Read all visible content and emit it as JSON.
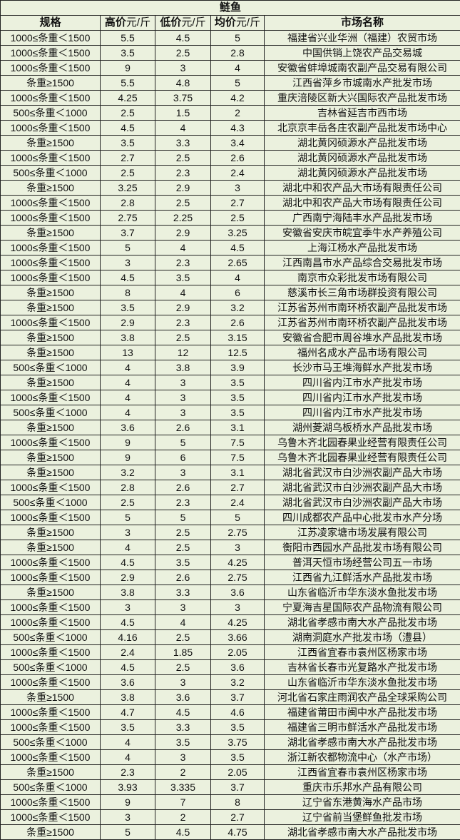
{
  "title": "鲢鱼",
  "headers": {
    "spec": "规格",
    "high": "高价",
    "high_unit": "元/斤",
    "low": "低价",
    "low_unit": "元/斤",
    "avg": "均价",
    "avg_unit": "元/斤",
    "market": "市场名称"
  },
  "rows": [
    [
      "1000≤条重＜1500",
      "5.5",
      "4.5",
      "5",
      "福建省兴业华洲（福建）农贸市场"
    ],
    [
      "1000≤条重＜1500",
      "3.5",
      "2.5",
      "2.8",
      "中国供销上饶农产品交易城"
    ],
    [
      "1000≤条重＜1500",
      "9",
      "3",
      "4",
      "安徽省蚌埠城南农副产品交易有限公司"
    ],
    [
      "条重≥1500",
      "5.5",
      "4.8",
      "5",
      "江西省萍乡市城南水产批发市场"
    ],
    [
      "1000≤条重＜1500",
      "4.25",
      "3.75",
      "4.2",
      "重庆涪陵区新大兴国际农产品批发市场"
    ],
    [
      "500≤条重＜1000",
      "2.5",
      "1.5",
      "2",
      "吉林省延吉市西市场"
    ],
    [
      "1000≤条重＜1500",
      "4.5",
      "4",
      "4.3",
      "北京京丰岳各庄农副产品批发市场中心"
    ],
    [
      "条重≥1500",
      "3.5",
      "3.3",
      "3.4",
      "湖北黄冈硕源水产品批发市场"
    ],
    [
      "1000≤条重＜1500",
      "2.7",
      "2.5",
      "2.6",
      "湖北黄冈硕源水产品批发市场"
    ],
    [
      "500≤条重＜1000",
      "2.5",
      "2.3",
      "2.4",
      "湖北黄冈硕源水产品批发市场"
    ],
    [
      "条重≥1500",
      "3.25",
      "2.9",
      "3",
      "湖北中和农产品大市场有限责任公司"
    ],
    [
      "1000≤条重＜1500",
      "2.8",
      "2.5",
      "2.7",
      "湖北中和农产品大市场有限责任公司"
    ],
    [
      "1000≤条重＜1500",
      "2.75",
      "2.25",
      "2.5",
      "广西南宁海陆丰水产品批发市场"
    ],
    [
      "条重≥1500",
      "3.7",
      "2.9",
      "3.25",
      "安徽省安庆市皖宜季牛水产养殖公司"
    ],
    [
      "1000≤条重＜1500",
      "5",
      "4",
      "4.5",
      "上海江杨水产品批发市场"
    ],
    [
      "1000≤条重＜1500",
      "3",
      "2.3",
      "2.65",
      "江西南昌市水产品综合交易批发市场"
    ],
    [
      "1000≤条重＜1500",
      "4.5",
      "3.5",
      "4",
      "南京市众彩批发市场有限公司"
    ],
    [
      "条重≥1500",
      "8",
      "4",
      "6",
      "慈溪市长三角市场群投资有限公司"
    ],
    [
      "条重≥1500",
      "3.5",
      "2.9",
      "3.2",
      "江苏省苏州市南环桥农副产品批发市场"
    ],
    [
      "1000≤条重＜1500",
      "2.9",
      "2.3",
      "2.6",
      "江苏省苏州市南环桥农副产品批发市场"
    ],
    [
      "条重≥1500",
      "3.8",
      "2.5",
      "3.15",
      "安徽省合肥市周谷堆水产品批发市场"
    ],
    [
      "条重≥1500",
      "13",
      "12",
      "12.5",
      "福州名成水产品市场有限公司"
    ],
    [
      "500≤条重＜1000",
      "4",
      "3.8",
      "3.9",
      "长沙市马王堆海鲜水产批发市场"
    ],
    [
      "条重≥1500",
      "4",
      "3",
      "3.5",
      "四川省内江市水产批发市场"
    ],
    [
      "1000≤条重＜1500",
      "4",
      "3",
      "3.5",
      "四川省内江市水产批发市场"
    ],
    [
      "500≤条重＜1000",
      "4",
      "3",
      "3.5",
      "四川省内江市水产批发市场"
    ],
    [
      "条重≥1500",
      "3.6",
      "2.6",
      "3.1",
      "湖州菱湖乌板桥水产品批发市场"
    ],
    [
      "1000≤条重＜1500",
      "9",
      "5",
      "7.5",
      "乌鲁木齐北园春果业经营有限责任公司"
    ],
    [
      "条重≥1500",
      "9",
      "6",
      "7.5",
      "乌鲁木齐北园春果业经营有限责任公司"
    ],
    [
      "条重≥1500",
      "3.2",
      "3",
      "3.1",
      "湖北省武汉市白沙洲农副产品大市场"
    ],
    [
      "1000≤条重＜1500",
      "2.8",
      "2.6",
      "2.7",
      "湖北省武汉市白沙洲农副产品大市场"
    ],
    [
      "500≤条重＜1000",
      "2.5",
      "2.3",
      "2.4",
      "湖北省武汉市白沙洲农副产品大市场"
    ],
    [
      "1000≤条重＜1500",
      "5",
      "5",
      "5",
      "四川成都农产品中心批发市水产分场"
    ],
    [
      "条重≥1500",
      "3",
      "2.5",
      "2.75",
      "江苏凌家塘市场发展有限公司"
    ],
    [
      "条重≥1500",
      "4",
      "2.5",
      "3",
      "衡阳市西园水产品批发市场有限公司"
    ],
    [
      "1000≤条重＜1500",
      "4.5",
      "3.5",
      "4.25",
      "普洱天恒市场经营公司五一市场"
    ],
    [
      "1000≤条重＜1500",
      "2.9",
      "2.6",
      "2.75",
      "江西省九江鲜活水产品批发市场"
    ],
    [
      "条重≥1500",
      "3.8",
      "3.3",
      "3.6",
      "山东省临沂市华东淡水鱼批发市场"
    ],
    [
      "1000≤条重＜1500",
      "3",
      "3",
      "3",
      "宁夏海吉星国际农产品物流有限公司"
    ],
    [
      "1000≤条重＜1500",
      "4.5",
      "4",
      "4.25",
      "湖北省孝感市南大水产品批发市场"
    ],
    [
      "500≤条重＜1000",
      "4.16",
      "2.5",
      "3.66",
      "湖南洞庭水产批发市场（澧县）"
    ],
    [
      "1000≤条重＜1500",
      "2.4",
      "1.85",
      "2.05",
      "江西省宜春市袁州区杨家市场"
    ],
    [
      "500≤条重＜1000",
      "4.5",
      "2.5",
      "3.6",
      "吉林省长春市光复路水产批发市场"
    ],
    [
      "1000≤条重＜1500",
      "3.6",
      "3",
      "3.2",
      "山东省临沂市华东淡水鱼批发市场"
    ],
    [
      "条重≥1500",
      "3.8",
      "3.6",
      "3.7",
      "河北省石家庄雨润农产品全球采购公司"
    ],
    [
      "1000≤条重＜1500",
      "4.7",
      "4.5",
      "4.6",
      "福建省莆田市闽中水产品批发市场"
    ],
    [
      "1000≤条重＜1500",
      "3.5",
      "3.3",
      "3.5",
      "福建省三明市鲜活水产品批发市场"
    ],
    [
      "500≤条重＜1000",
      "4",
      "3.5",
      "3.75",
      "湖北省孝感市南大水产品批发市场"
    ],
    [
      "1000≤条重＜1500",
      "4",
      "3",
      "3.5",
      "浙江新农都物流中心（水产市场）"
    ],
    [
      "条重≥1500",
      "2.3",
      "2",
      "2.05",
      "江西省宜春市袁州区杨家市场"
    ],
    [
      "500≤条重＜1000",
      "3.93",
      "3.335",
      "3.7",
      "重庆市乐邦水产品有限公司"
    ],
    [
      "1000≤条重＜1500",
      "9",
      "7",
      "8",
      "辽宁省东港黄海水产品市场"
    ],
    [
      "1000≤条重＜1500",
      "3",
      "2",
      "2.7",
      "辽宁省前当堡鲜鱼批发市场"
    ],
    [
      "条重≥1500",
      "5",
      "4.5",
      "4.75",
      "湖北省孝感市南大水产品批发市场"
    ]
  ]
}
